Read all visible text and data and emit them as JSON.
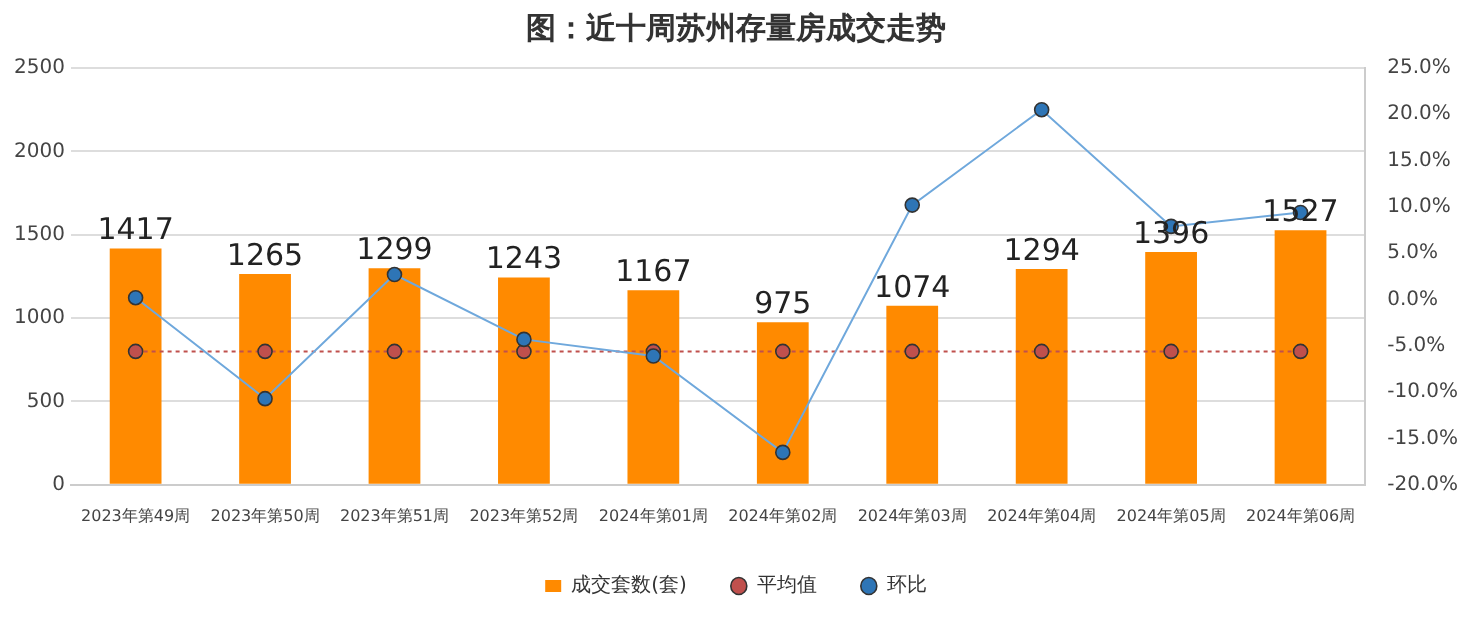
{
  "chart_data": {
    "type": "bar",
    "title": "图：近十周苏州存量房成交走势",
    "categories": [
      "2023年第49周",
      "2023年第50周",
      "2023年第51周",
      "2023年第52周",
      "2024年第01周",
      "2024年第02周",
      "2024年第03周",
      "2024年第04周",
      "2024年第05周",
      "2024年第06周"
    ],
    "series": [
      {
        "name": "成交套数(套)",
        "color": "#ff8a00",
        "values": [
          1417,
          1265,
          1299,
          1243,
          1167,
          975,
          1074,
          1294,
          1396,
          1527
        ],
        "value_labels": [
          "1417",
          "1265",
          "1299",
          "1243",
          "1167",
          "975",
          "1074",
          "1294",
          "1396",
          "1527"
        ]
      },
      {
        "name": "平均值",
        "type": "line",
        "color": "#c0504d",
        "line_style": "dotted",
        "marker": "circle",
        "values": [
          800,
          800,
          800,
          800,
          800,
          800,
          800,
          800,
          800,
          800
        ]
      },
      {
        "name": "环比",
        "type": "line",
        "axis": "y2",
        "color": "#6fa8dc",
        "marker": "circle",
        "values": [
          0.2,
          -10.7,
          2.7,
          -4.3,
          -6.1,
          -16.5,
          10.2,
          20.5,
          7.9,
          9.4
        ]
      }
    ],
    "ylim": [
      0,
      2500
    ],
    "yticks": [
      0,
      500,
      1000,
      1500,
      2000,
      2500
    ],
    "y2lim": [
      -20,
      25
    ],
    "y2ticks": [
      {
        "value": -20,
        "label": "-20.0%"
      },
      {
        "value": -15,
        "label": "-15.0%"
      },
      {
        "value": -10,
        "label": "-10.0%"
      },
      {
        "value": -5,
        "label": "-5.0%"
      },
      {
        "value": 0,
        "label": "0.0%"
      },
      {
        "value": 5,
        "label": "5.0%"
      },
      {
        "value": 10,
        "label": "10.0%"
      },
      {
        "value": 15,
        "label": "15.0%"
      },
      {
        "value": 20,
        "label": "20.0%"
      },
      {
        "value": 25,
        "label": "25.0%"
      }
    ],
    "grid": "y",
    "legend": "bottom"
  }
}
